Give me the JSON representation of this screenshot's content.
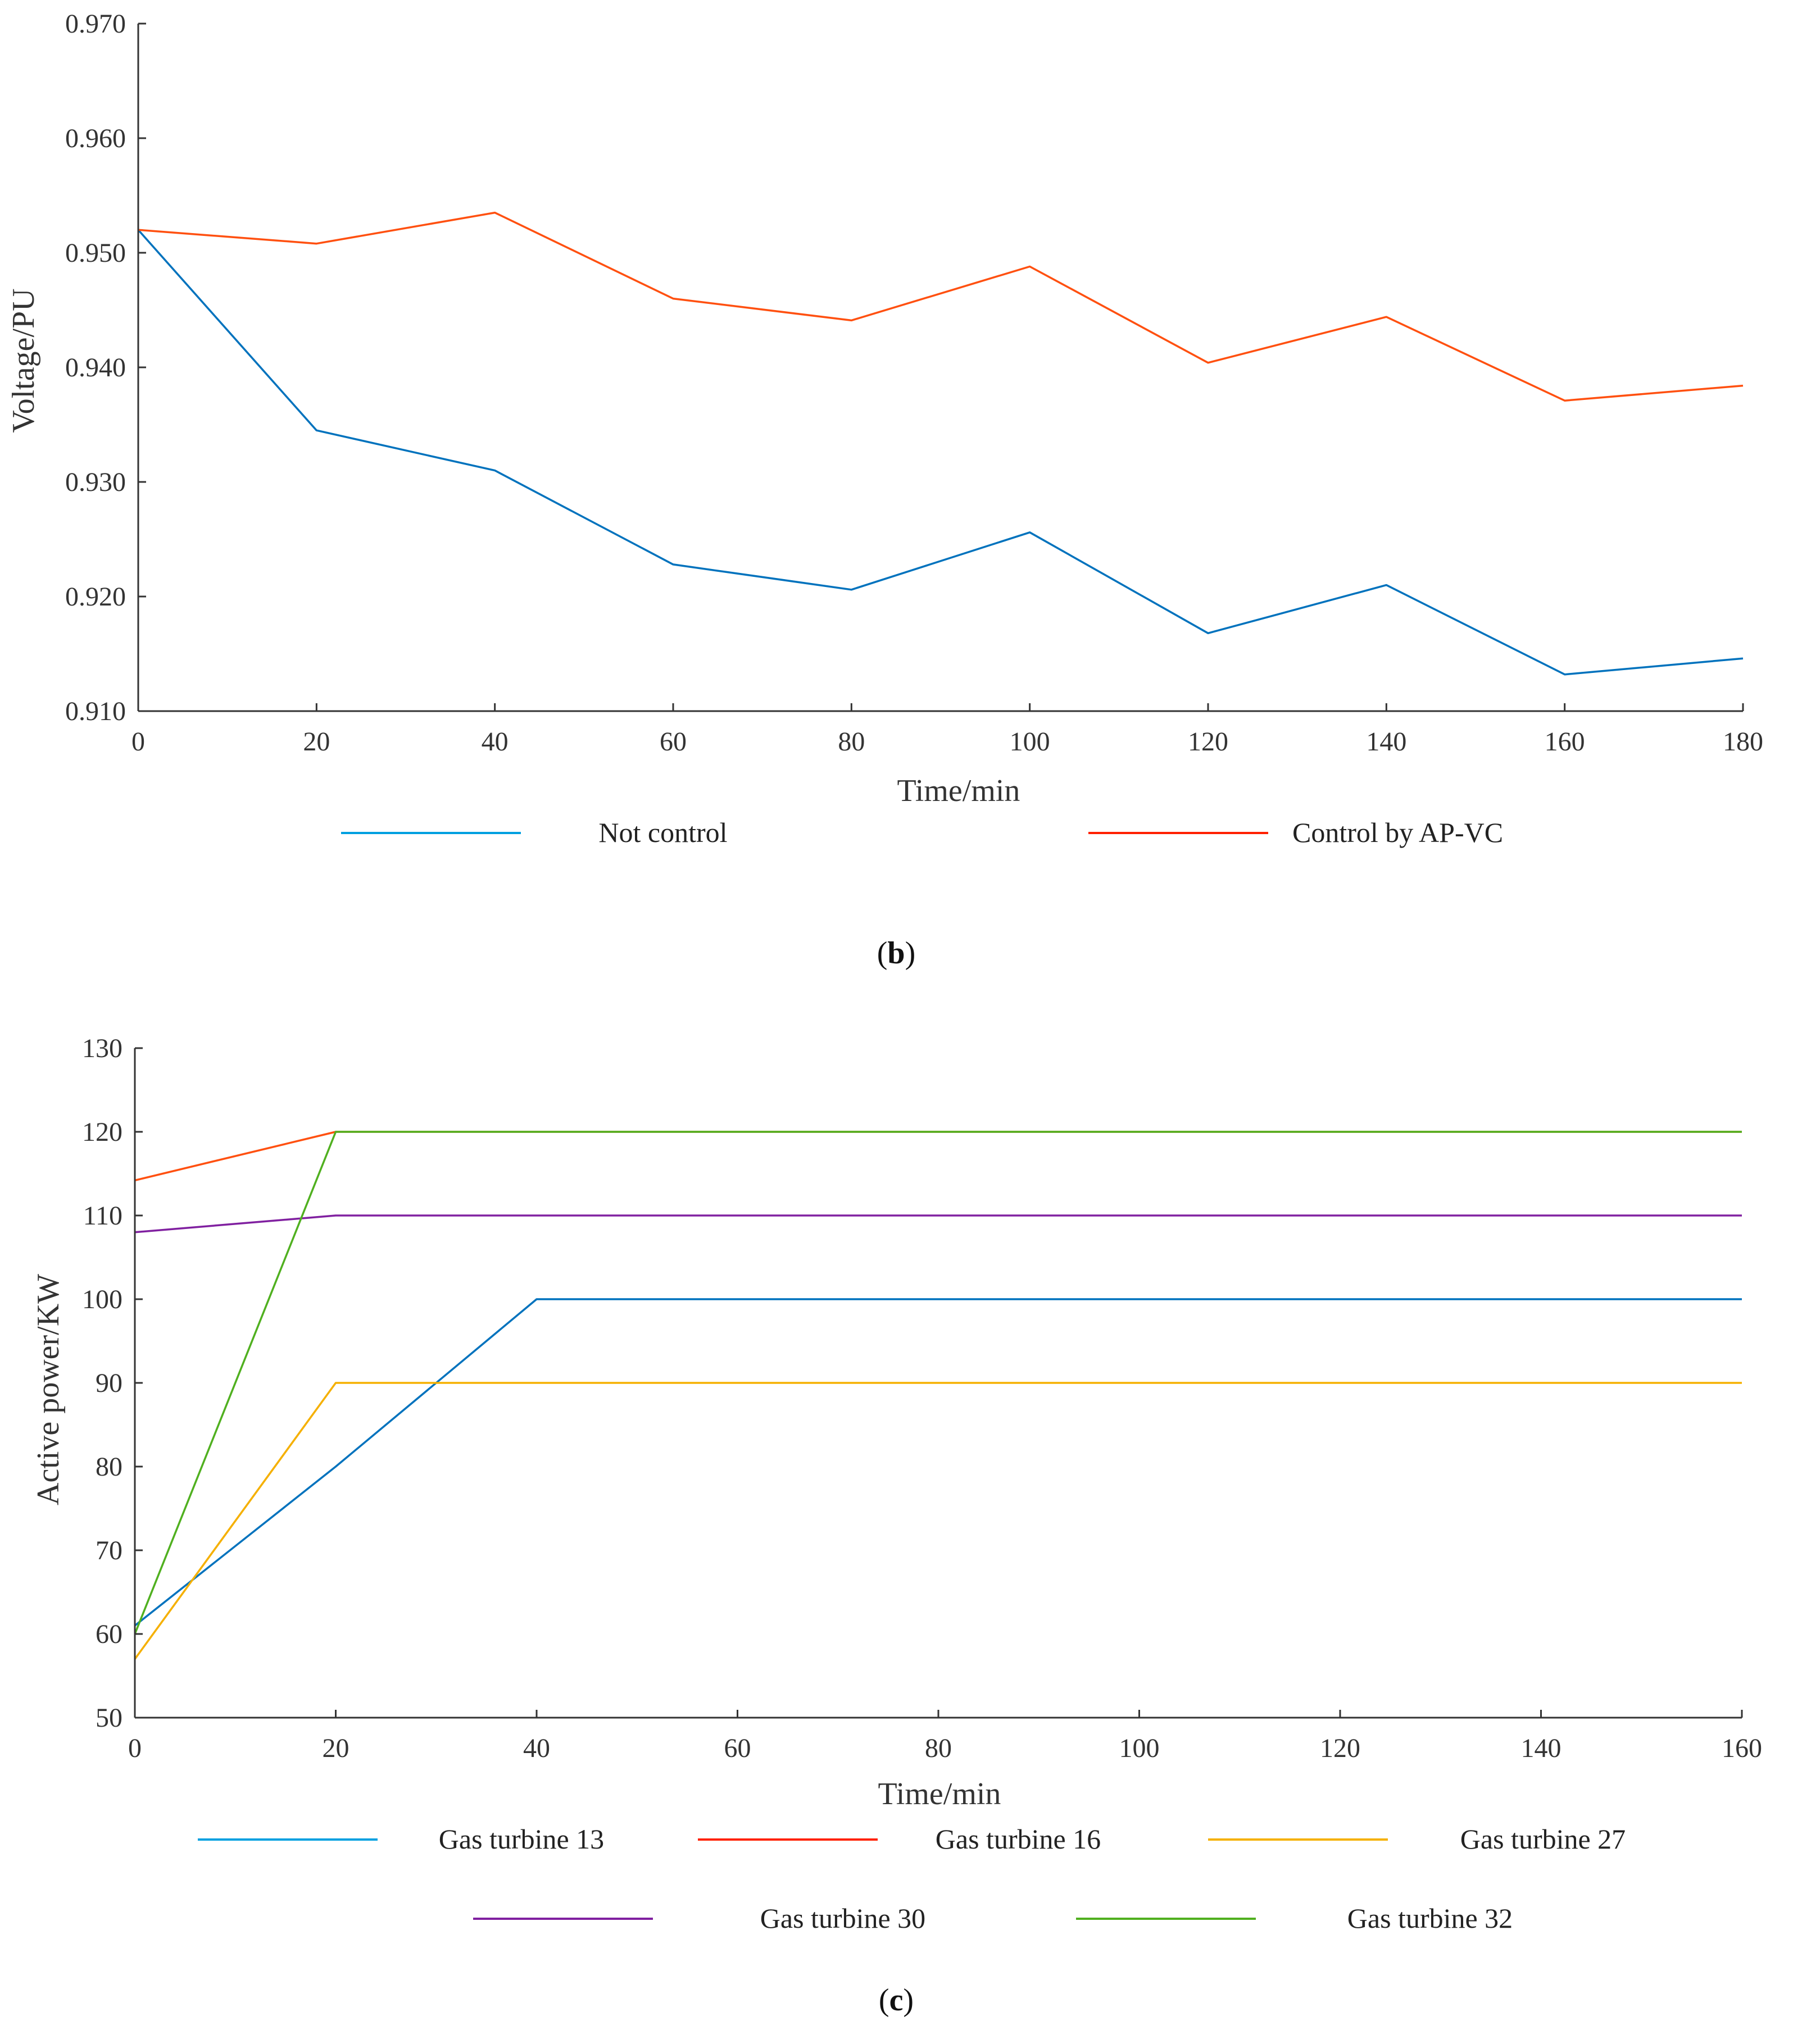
{
  "chart_data": [
    {
      "type": "line",
      "panel_label": "b",
      "title": "",
      "xlabel": "Time/min",
      "ylabel": "Voltage/PU",
      "xlim": [
        0,
        180
      ],
      "ylim": [
        0.91,
        0.97
      ],
      "xticks": [
        "0",
        "20",
        "40",
        "60",
        "80",
        "100",
        "120",
        "140",
        "160",
        "180"
      ],
      "yticks": [
        "0.910",
        "0.920",
        "0.930",
        "0.940",
        "0.950",
        "0.960",
        "0.970"
      ],
      "grid": false,
      "legend_position": "bottom",
      "x": [
        0,
        20,
        40,
        60,
        80,
        100,
        120,
        140,
        160,
        180
      ],
      "series": [
        {
          "name": "Not control",
          "color": "#0072BD",
          "legend_color": "#00A0E0",
          "values": [
            0.952,
            0.9345,
            0.931,
            0.9228,
            0.9206,
            0.9256,
            0.9168,
            0.921,
            0.9132,
            0.9146
          ]
        },
        {
          "name": "Control by AP-VC",
          "color": "#FF5010",
          "legend_color": "#FF2000",
          "values": [
            0.952,
            0.9508,
            0.9535,
            0.946,
            0.9441,
            0.9488,
            0.9404,
            0.9444,
            0.9371,
            0.9384
          ]
        }
      ]
    },
    {
      "type": "line",
      "panel_label": "c",
      "title": "",
      "xlabel": "Time/min",
      "ylabel": "Active power/KW",
      "xlim": [
        0,
        160
      ],
      "ylim": [
        50,
        130
      ],
      "xticks": [
        "0",
        "20",
        "40",
        "60",
        "80",
        "100",
        "120",
        "140",
        "160"
      ],
      "yticks": [
        "50",
        "60",
        "70",
        "80",
        "90",
        "100",
        "110",
        "120",
        "130"
      ],
      "grid": false,
      "legend_position": "bottom",
      "x": [
        0,
        20,
        40,
        60,
        80,
        100,
        120,
        140,
        160
      ],
      "series": [
        {
          "name": "Gas turbine 13",
          "color": "#0072BD",
          "legend_color": "#00A0E0",
          "values": [
            61,
            80,
            100,
            100,
            100,
            100,
            100,
            100,
            100
          ]
        },
        {
          "name": "Gas turbine 16",
          "color": "#FF5010",
          "legend_color": "#FF2000",
          "values": [
            114.2,
            120,
            120,
            120,
            120,
            120,
            120,
            120,
            120
          ]
        },
        {
          "name": "Gas turbine 27",
          "color": "#F5B000",
          "legend_color": "#F5B000",
          "values": [
            57,
            90,
            90,
            90,
            90,
            90,
            90,
            90,
            90
          ]
        },
        {
          "name": "Gas turbine 30",
          "color": "#8020A0",
          "legend_color": "#8020A0",
          "values": [
            108,
            110,
            110,
            110,
            110,
            110,
            110,
            110,
            110
          ]
        },
        {
          "name": "Gas turbine 32",
          "color": "#50B020",
          "legend_color": "#50B020",
          "values": [
            60,
            120,
            120,
            120,
            120,
            120,
            120,
            120,
            120
          ]
        }
      ]
    }
  ]
}
